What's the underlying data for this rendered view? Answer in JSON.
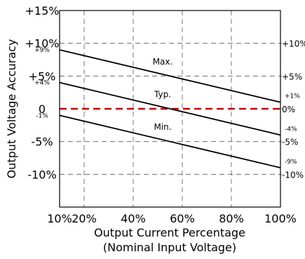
{
  "chart_data": {
    "type": "line",
    "xlabel": "Output Current Percentage",
    "xlabel_sub": "(Nominal Input Voltage)",
    "ylabel": "Output Voltage Accuracy",
    "xlim": [
      10,
      100
    ],
    "ylim": [
      -15,
      15
    ],
    "grid": true,
    "x_ticks": [
      {
        "value": 10,
        "label": "10%"
      },
      {
        "value": 20,
        "label": "20%"
      },
      {
        "value": 40,
        "label": "40%"
      },
      {
        "value": 60,
        "label": "60%"
      },
      {
        "value": 80,
        "label": "80%"
      },
      {
        "value": 100,
        "label": "100%"
      }
    ],
    "y_ticks_left": [
      {
        "value": 15,
        "label": "+15%"
      },
      {
        "value": 10,
        "label": "+10%"
      },
      {
        "value": 5,
        "label": "+5%"
      },
      {
        "value": 0,
        "label": "0"
      },
      {
        "value": -5,
        "label": "-5%"
      },
      {
        "value": -10,
        "label": "-10%"
      }
    ],
    "y_ticks_left_minor": [
      {
        "value": 9,
        "label": "+9%"
      },
      {
        "value": 4,
        "label": "+4%"
      },
      {
        "value": -1,
        "label": "-1%"
      }
    ],
    "y_ticks_right": [
      {
        "value": 10,
        "label": "+10%"
      },
      {
        "value": 5,
        "label": "+5%"
      },
      {
        "value": 0,
        "label": "0%"
      },
      {
        "value": -5,
        "label": "-5%"
      },
      {
        "value": -10,
        "label": "-10%"
      }
    ],
    "y_ticks_right_minor": [
      {
        "value": 1,
        "label": "+1%"
      },
      {
        "value": -4,
        "label": "-4%"
      },
      {
        "value": -9,
        "label": "-9%"
      }
    ],
    "series": [
      {
        "name": "Max.",
        "x": [
          10,
          100
        ],
        "y": [
          9,
          1
        ],
        "color": "#000000"
      },
      {
        "name": "Typ.",
        "x": [
          10,
          100
        ],
        "y": [
          4,
          -4
        ],
        "color": "#000000"
      },
      {
        "name": "Min.",
        "x": [
          10,
          100
        ],
        "y": [
          -1,
          -9
        ],
        "color": "#000000"
      }
    ],
    "reference_line": {
      "y": 0,
      "color": "#cc0000",
      "style": "dashed"
    },
    "series_label_x": [
      52,
      52,
      52
    ],
    "series_label_offset_y": [
      1.5,
      1.5,
      1.5
    ]
  }
}
